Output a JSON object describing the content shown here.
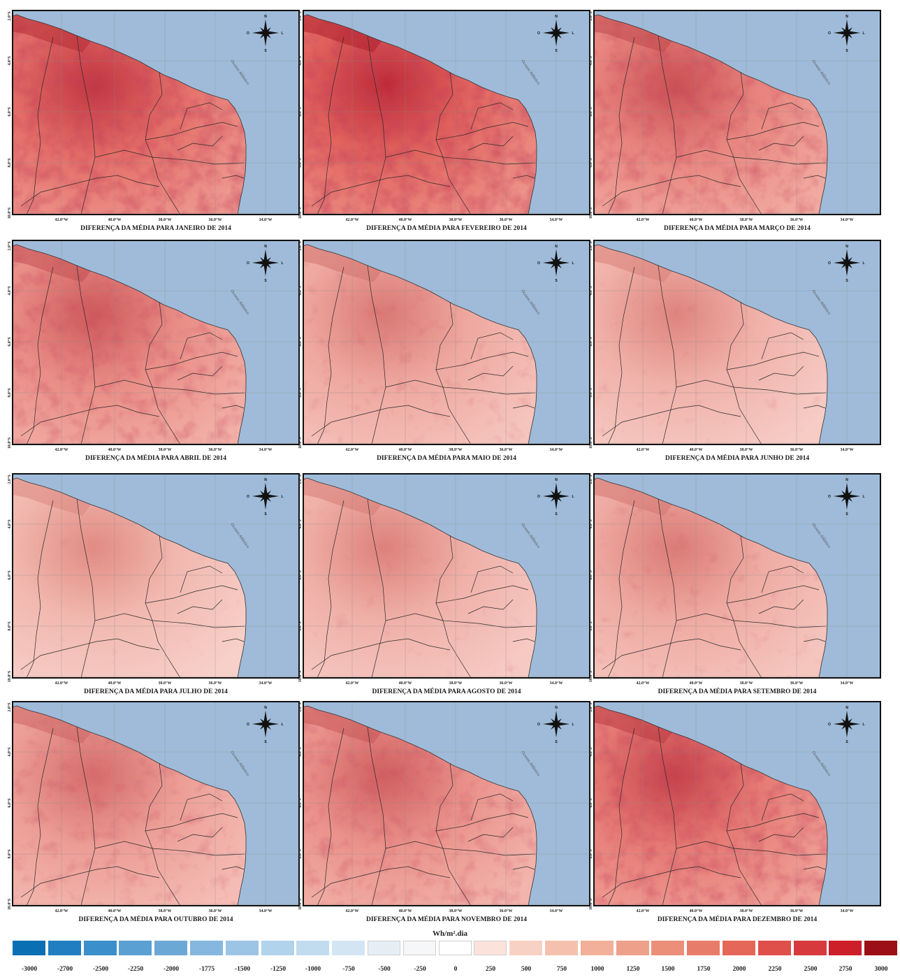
{
  "legend": {
    "unit_label": "Wh/m².dia",
    "colors": [
      "#0b6fb3",
      "#217fc1",
      "#3b8fcb",
      "#5aa0d3",
      "#6ca8d6",
      "#86b7de",
      "#9cc5e5",
      "#b1d3eb",
      "#c1dcef",
      "#d3e5f2",
      "#e6eef5",
      "#f6f7f9",
      "#ffffff",
      "#fbe2da",
      "#f7d2c4",
      "#f5c1ae",
      "#f2b09b",
      "#efa08a",
      "#ec8f79",
      "#e87c6a",
      "#e5675a",
      "#e0504b",
      "#d73a3c",
      "#cc1f2a",
      "#9c0f16"
    ],
    "ticks": [
      "-3000",
      "-2700",
      "-2500",
      "-2250",
      "-2000",
      "-1775",
      "-1500",
      "-1250",
      "-1000",
      "-750",
      "-500",
      "-250",
      "0",
      "250",
      "500",
      "750",
      "1000",
      "1250",
      "1500",
      "1750",
      "2000",
      "2250",
      "2500",
      "2750",
      "3000"
    ]
  },
  "map_labels": {
    "lat": [
      "2.0°S",
      "4.0°S",
      "6.0°S",
      "8.0°S",
      "10.0°S"
    ],
    "lon": [
      "42.0°W",
      "40.0°W",
      "38.0°W",
      "36.0°W",
      "34.0°W"
    ],
    "ocean": "Oceano Atlântico",
    "compass": {
      "n": "N",
      "s": "S",
      "w": "O",
      "e": "L"
    }
  },
  "ocean_color": "#9fbbd9",
  "panels": [
    {
      "title": "DIFERENÇA DA MÉDIA PARA JANEIRO DE 2014",
      "level": 0.85
    },
    {
      "title": "DIFERENÇA DA MÉDIA PARA FEVEREIRO DE 2014",
      "level": 0.92
    },
    {
      "title": "DIFERENÇA DA MÉDIA PARA MARÇO DE 2014",
      "level": 0.68
    },
    {
      "title": "DIFERENÇA DA MÉDIA PARA ABRIL DE 2014",
      "level": 0.62
    },
    {
      "title": "DIFERENÇA DA MÉDIA PARA MAIO DE 2014",
      "level": 0.42
    },
    {
      "title": "DIFERENÇA DA MÉDIA PARA JUNHO DE 2014",
      "level": 0.34
    },
    {
      "title": "DIFERENÇA DA MÉDIA PARA JULHO DE 2014",
      "level": 0.3
    },
    {
      "title": "DIFERENÇA DA MÉDIA PARA AGOSTO DE 2014",
      "level": 0.36
    },
    {
      "title": "DIFERENÇA DA MÉDIA PARA SETEMBRO DE 2014",
      "level": 0.4
    },
    {
      "title": "DIFERENÇA DA MÉDIA PARA OUTUBRO DE 2014",
      "level": 0.5
    },
    {
      "title": "DIFERENÇA DA MÉDIA PARA NOVEMBRO DE 2014",
      "level": 0.58
    },
    {
      "title": "DIFERENÇA DA MÉDIA PARA DEZEMBRO DE 2014",
      "level": 0.76
    }
  ]
}
